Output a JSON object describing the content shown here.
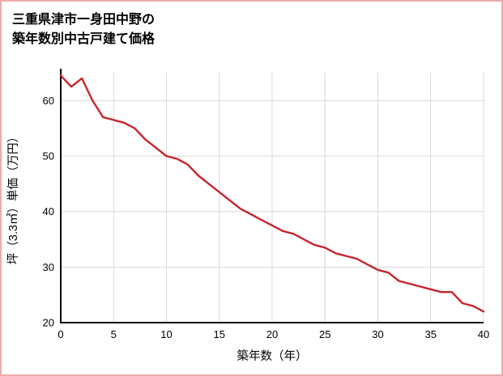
{
  "page": {
    "title_line1": "三重県津市一身田中野の",
    "title_line2": "築年数別中古戸建て価格",
    "border_color": "#ebacac",
    "background": "#ffffff"
  },
  "chart_data": {
    "type": "line",
    "title": "三重県津市一身田中野の築年数別中古戸建て価格",
    "xlabel": "築年数（年）",
    "ylabel": "坪（3.3㎡）単価（万円）",
    "x": [
      0,
      1,
      2,
      3,
      4,
      5,
      6,
      7,
      8,
      9,
      10,
      11,
      12,
      13,
      14,
      15,
      16,
      17,
      18,
      19,
      20,
      21,
      22,
      23,
      24,
      25,
      26,
      27,
      28,
      29,
      30,
      31,
      32,
      33,
      34,
      35,
      36,
      37,
      38,
      39,
      40
    ],
    "values": [
      64.5,
      62.5,
      64,
      60,
      57,
      56.5,
      56,
      55,
      53,
      51.5,
      50,
      49.5,
      48.5,
      46.5,
      45,
      43.5,
      42,
      40.5,
      39.5,
      38.5,
      37.5,
      36.5,
      36,
      35,
      34,
      33.5,
      32.5,
      32,
      31.5,
      30.5,
      29.5,
      29,
      27.5,
      27,
      26.5,
      26,
      25.5,
      25.5,
      23.5,
      23,
      22
    ],
    "xlim": [
      0,
      40
    ],
    "ylim": [
      20,
      65
    ],
    "x_ticks": [
      0,
      5,
      10,
      15,
      20,
      25,
      30,
      35,
      40
    ],
    "y_ticks": [
      20,
      30,
      40,
      50,
      60
    ],
    "grid": true,
    "legend": "none",
    "line_color": "#c7242c",
    "grid_color": "#d8d8d8",
    "axis_color": "#000000",
    "text_color": "#000000"
  }
}
